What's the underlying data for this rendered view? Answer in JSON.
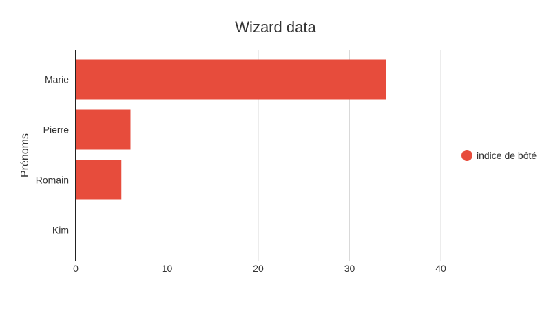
{
  "chart_data": {
    "type": "bar",
    "orientation": "horizontal",
    "title": "Wizard data",
    "xlabel": "",
    "ylabel": "Prénoms",
    "categories": [
      "Marie",
      "Pierre",
      "Romain",
      "Kim"
    ],
    "series": [
      {
        "name": "indice de bôté",
        "values": [
          34,
          6,
          5,
          0
        ],
        "color": "#e74c3c"
      }
    ],
    "xlim": [
      0,
      50
    ],
    "xticks": [
      "0",
      "10",
      "20",
      "30",
      "40"
    ],
    "grid": true,
    "legend_position": "right"
  }
}
